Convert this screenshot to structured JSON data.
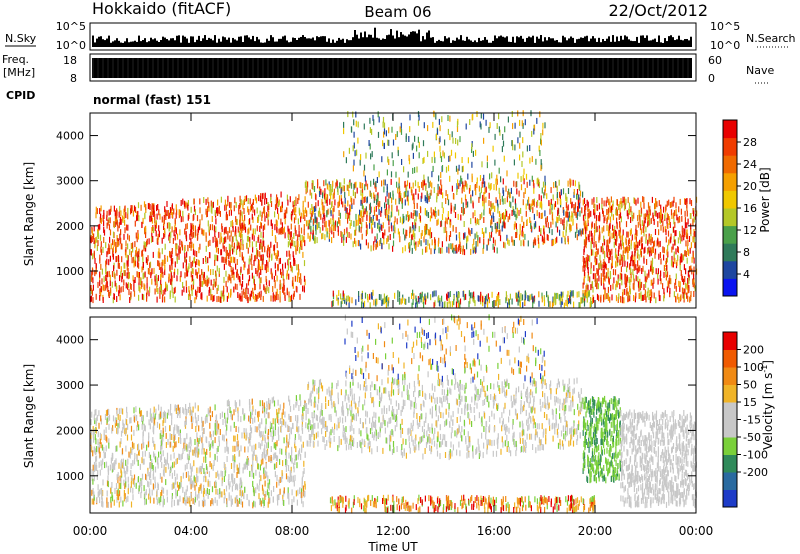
{
  "header": {
    "station": "Hokkaido (fitACF)",
    "beam": "Beam 06",
    "date": "22/Oct/2012"
  },
  "panels": {
    "nsky": {
      "label": "N.Sky",
      "left_ticks": [
        "10^5",
        "10^0"
      ],
      "right_ticks": [
        "10^5",
        "10^0"
      ],
      "right_label": "N.Search"
    },
    "freq": {
      "label_line1": "Freq.",
      "label_line2": "[MHz]",
      "left_ticks": [
        "18",
        "8"
      ],
      "right_ticks": [
        "60",
        "0"
      ],
      "right_label": "Nave"
    },
    "cpid": {
      "label": "CPID",
      "value": "normal (fast) 151"
    }
  },
  "chart_data": [
    {
      "type": "heatmap",
      "title": "",
      "xlabel": "Time UT",
      "ylabel": "Slant Range [km]",
      "xlim": [
        "00:00",
        "00:00"
      ],
      "ylim": [
        180,
        4500
      ],
      "x_ticks": [
        "00:00",
        "04:00",
        "08:00",
        "12:00",
        "16:00",
        "20:00",
        "00:00"
      ],
      "y_ticks": [
        1000,
        2000,
        3000,
        4000
      ],
      "colorbar": {
        "label": "Power [dB]",
        "ticks": [
          4,
          8,
          12,
          16,
          20,
          24,
          28
        ],
        "colors": [
          "#0a14f0",
          "#1e46a0",
          "#2f7a5a",
          "#4aa04a",
          "#b4c828",
          "#f0c800",
          "#f5a000",
          "#f06a00",
          "#f03c00",
          "#e80000"
        ]
      }
    },
    {
      "type": "heatmap",
      "title": "",
      "xlabel": "Time UT",
      "ylabel": "Slant Range [km]",
      "xlim": [
        "00:00",
        "00:00"
      ],
      "ylim": [
        180,
        4500
      ],
      "x_ticks": [
        "00:00",
        "04:00",
        "08:00",
        "12:00",
        "16:00",
        "20:00",
        "00:00"
      ],
      "y_ticks": [
        1000,
        2000,
        3000,
        4000
      ],
      "colorbar": {
        "label": "Velocity [m s^-1]",
        "ticks": [
          200,
          100,
          50,
          15,
          -15,
          -50,
          -100,
          -200
        ],
        "colors": [
          "#1e3cc8",
          "#2a6aa0",
          "#2f8a5a",
          "#7ad03a",
          "#c8c8c8",
          "#c8c8c8",
          "#f0b428",
          "#f08a14",
          "#f05a00",
          "#e80000"
        ]
      }
    }
  ]
}
